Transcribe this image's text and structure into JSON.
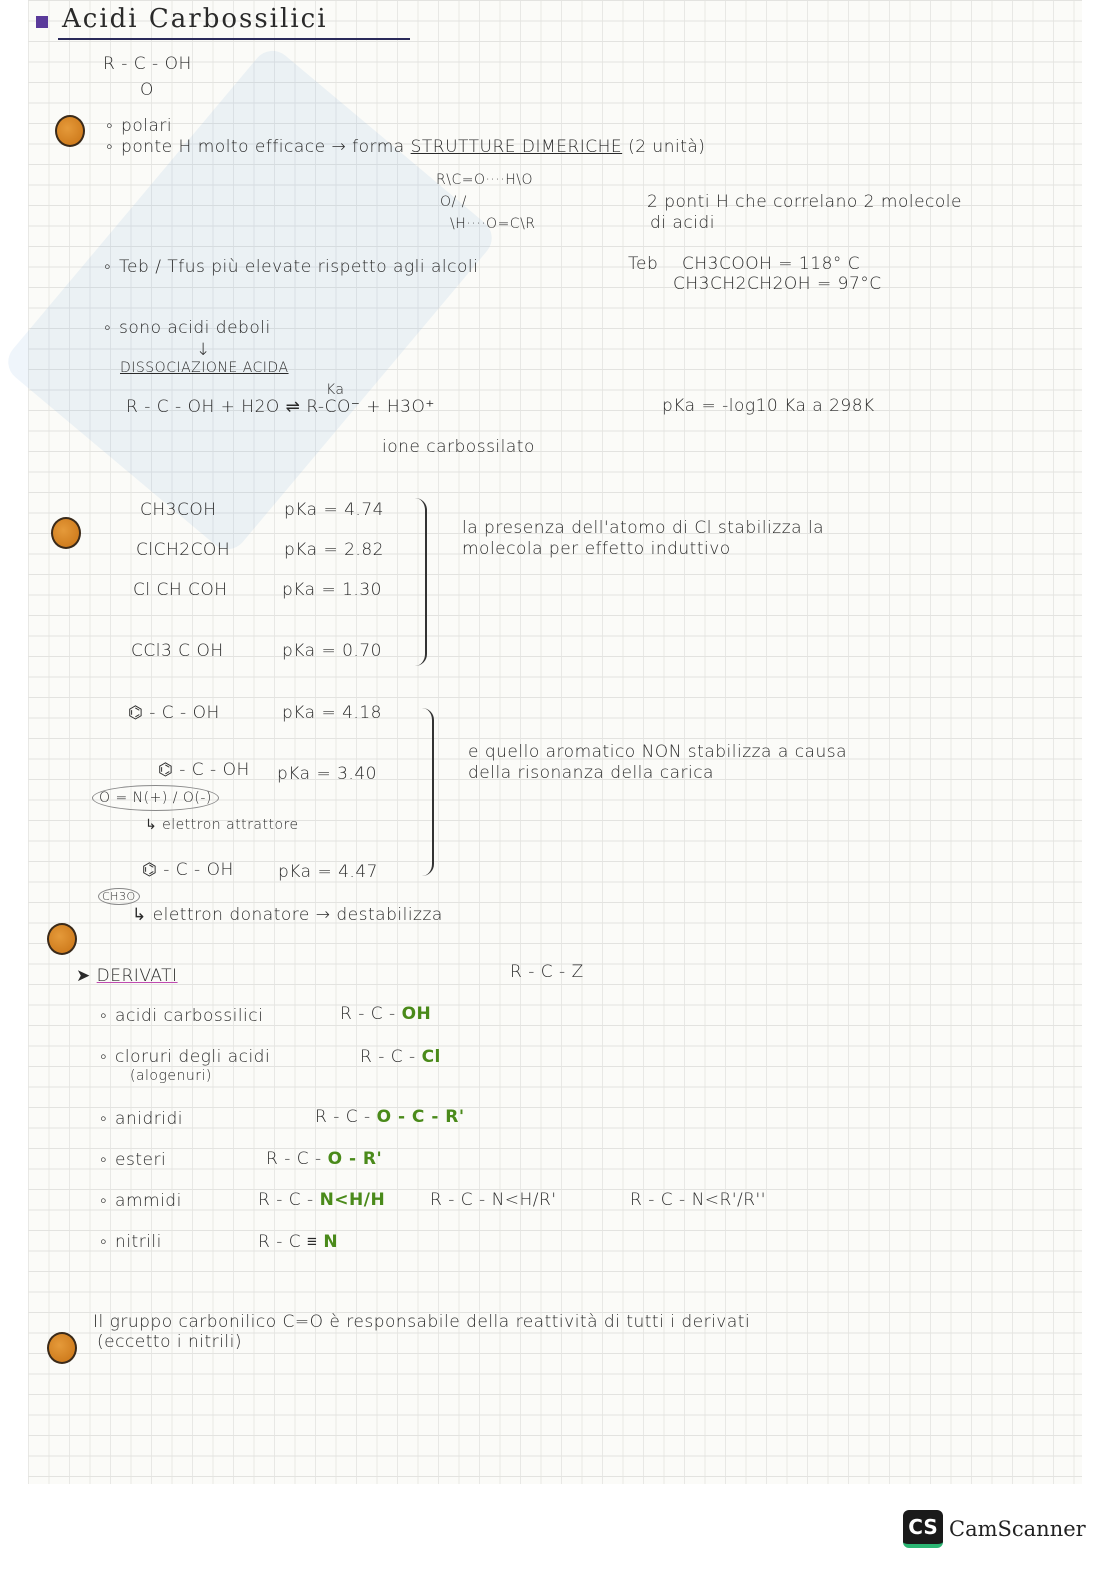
{
  "title": "Acidi Carbossilici",
  "general_formula": {
    "main": "R - C - OH",
    "oxygen": "O"
  },
  "properties": {
    "polari": "polari",
    "ponte": "ponte H molto efficace → forma",
    "strutture": "STRUTTURE DIMERICHE",
    "unita": "(2 unità)",
    "dimer": {
      "line1": "R\\C=O····H\\O",
      "line2": "O/      /",
      "line3": "\\H····O=C\\R"
    },
    "ponti_note_1": "2 ponti H che correlano 2 molecole",
    "ponti_note_2": "di acidi",
    "teb": "Teb / Tfus più elevate rispetto agli alcoli",
    "teb_label": "Teb",
    "teb_1": "CH3COOH = 118° C",
    "teb_2": "CH3CH2CH2OH = 97°C",
    "deboli": "sono acidi deboli",
    "arrow": "↓",
    "dissociazione": "DISSOCIAZIONE ACIDA",
    "equation": "R - C - OH  + H2O ⇌ R-CO⁻  + H3O⁺",
    "ka": "Ka",
    "ione": "ione carbossilato",
    "pka_def": "pKa = -log10 Ka a 298K"
  },
  "chloro_acids": [
    {
      "formula": "CH3COH",
      "pka": "pKa = 4.74"
    },
    {
      "formula": "ClCH2COH",
      "pka": "pKa = 2.82"
    },
    {
      "formula": "Cl CH COH",
      "pka": "pKa = 1.30"
    },
    {
      "formula": "CCl3 C OH",
      "pka": "pKa = 0.70"
    }
  ],
  "chloro_note_1": "la presenza dell'atomo di Cl stabilizza la",
  "chloro_note_2": "molecola per effetto induttivo",
  "aromatic_acids": [
    {
      "formula": "⌬ - C - OH",
      "pka": "pKa = 4.18"
    },
    {
      "formula": "⌬ - C - OH",
      "pka": "pKa = 3.40",
      "sub": "O = N(+) / O(-)",
      "note": "↳ elettron attrattore"
    },
    {
      "formula": "⌬ - C - OH",
      "pka": "pKa = 4.47",
      "sub": "CH3O",
      "note": "↳ elettron donatore → destabilizza"
    }
  ],
  "aromatic_note_1": "e quello aromatico NON stabilizza a causa",
  "aromatic_note_2": "della risonanza della carica",
  "derivati": {
    "heading": "DERIVATI",
    "general": "R - C - Z",
    "items": [
      {
        "name": "acidi carbossilici",
        "formula": "R - C - ",
        "group": "OH"
      },
      {
        "name": "cloruri degli acidi",
        "sub": "(alogenuri)",
        "formula": "R - C - ",
        "group": "Cl"
      },
      {
        "name": "anidridi",
        "formula": "R - C - ",
        "group": "O - C - R'"
      },
      {
        "name": "esteri",
        "formula": "R - C - ",
        "group": "O - R'"
      },
      {
        "name": "ammidi",
        "formula": "R - C - ",
        "group": "N<H/H",
        "alt1": "R - C - N<H/R'",
        "alt2": "R - C - N<R'/R''"
      },
      {
        "name": "nitrili",
        "formula": "R - C ≡ ",
        "group": "N"
      }
    ]
  },
  "conclusion_1": "Il gruppo carbonilico  C=O  è responsabile della reattività di tutti i derivati",
  "conclusion_2": "(eccetto i nitrili)",
  "scanner": {
    "badge": "CS",
    "name": "CamScanner"
  },
  "colors": {
    "dot": "#d9841f",
    "accent_green": "#4a8a1a",
    "title_ul": "#2a2a5a"
  }
}
